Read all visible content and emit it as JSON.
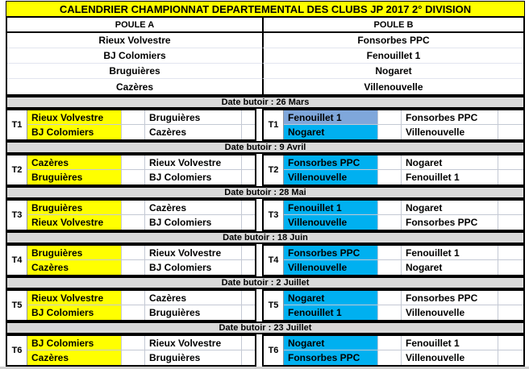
{
  "title": "CALENDRIER CHAMPIONNAT DEPARTEMENTAL DES CLUBS JP 2017 2° DIVISION",
  "pools": {
    "a": {
      "label": "POULE A",
      "teams": [
        "Rieux Volvestre",
        "BJ Colomiers",
        "Bruguières",
        "Cazères"
      ]
    },
    "b": {
      "label": "POULE B",
      "teams": [
        "Fonsorbes PPC",
        "Fenouillet 1",
        "Nogaret",
        "Villenouvelle"
      ]
    }
  },
  "rounds": [
    {
      "tour": "T1",
      "date": "Date butoir : 26 Mars",
      "a": {
        "home": [
          "Rieux Volvestre",
          "BJ Colomiers"
        ],
        "away": [
          "Bruguières",
          "Cazères"
        ]
      },
      "b": {
        "home": [
          "Fenouillet 1",
          "Nogaret"
        ],
        "away": [
          "Fonsorbes PPC",
          "Villenouvelle"
        ]
      }
    },
    {
      "tour": "T2",
      "date": "Date butoir : 9 Avril",
      "a": {
        "home": [
          "Cazères",
          "Bruguières"
        ],
        "away": [
          "Rieux Volvestre",
          "BJ Colomiers"
        ]
      },
      "b": {
        "home": [
          "Fonsorbes PPC",
          "Villenouvelle"
        ],
        "away": [
          "Nogaret",
          "Fenouillet 1"
        ]
      }
    },
    {
      "tour": "T3",
      "date": "Date butoir : 28 Mai",
      "a": {
        "home": [
          "Bruguières",
          "Rieux Volvestre"
        ],
        "away": [
          "Cazères",
          "BJ Colomiers"
        ]
      },
      "b": {
        "home": [
          "Fenouillet 1",
          "Villenouvelle"
        ],
        "away": [
          "Nogaret",
          "Fonsorbes PPC"
        ]
      }
    },
    {
      "tour": "T4",
      "date": "Date butoir : 18 Juin",
      "a": {
        "home": [
          "Bruguières",
          "Cazères"
        ],
        "away": [
          "Rieux Volvestre",
          "BJ Colomiers"
        ]
      },
      "b": {
        "home": [
          "Fonsorbes PPC",
          "Villenouvelle"
        ],
        "away": [
          "Fenouillet 1",
          "Nogaret"
        ]
      }
    },
    {
      "tour": "T5",
      "date": "Date butoir : 2 Juillet",
      "a": {
        "home": [
          "Rieux Volvestre",
          "BJ Colomiers"
        ],
        "away": [
          "Cazères",
          "Bruguières"
        ]
      },
      "b": {
        "home": [
          "Nogaret",
          "Fenouillet 1"
        ],
        "away": [
          "Fonsorbes PPC",
          "Villenouvelle"
        ]
      }
    },
    {
      "tour": "T6",
      "date": "Date butoir : 23 Juillet",
      "a": {
        "home": [
          "BJ Colomiers",
          "Cazères"
        ],
        "away": [
          "Rieux Volvestre",
          "Bruguières"
        ]
      },
      "b": {
        "home": [
          "Nogaret",
          "Fonsorbes PPC"
        ],
        "away": [
          "Fenouillet 1",
          "Villenouvelle"
        ]
      }
    }
  ],
  "colors": {
    "title_bg": "#FFFF00",
    "pool_a_highlight": "#FFFF00",
    "pool_b_highlight": "#00B0F0",
    "selected_cell_fill": "#7FA7DB",
    "deadline_bg": "#D9D9D9",
    "border": "#000000"
  }
}
